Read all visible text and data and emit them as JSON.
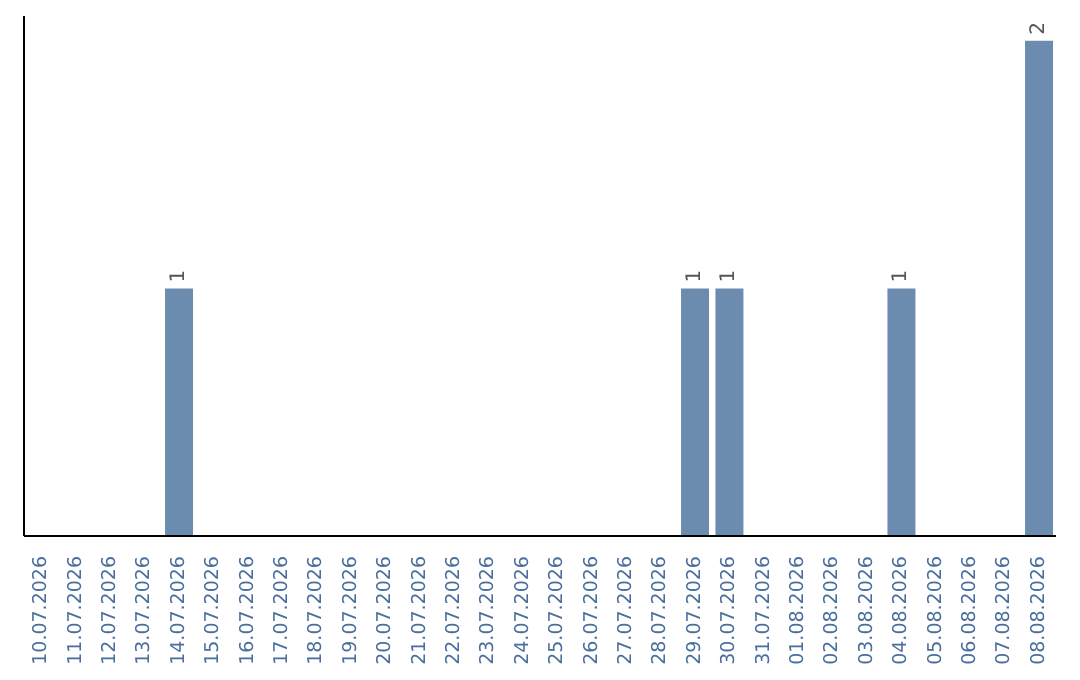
{
  "chart_data": {
    "type": "bar",
    "categories": [
      "10.07.2026",
      "11.07.2026",
      "12.07.2026",
      "13.07.2026",
      "14.07.2026",
      "15.07.2026",
      "16.07.2026",
      "17.07.2026",
      "18.07.2026",
      "19.07.2026",
      "20.07.2026",
      "21.07.2026",
      "22.07.2026",
      "23.07.2026",
      "24.07.2026",
      "25.07.2026",
      "26.07.2026",
      "27.07.2026",
      "28.07.2026",
      "29.07.2026",
      "30.07.2026",
      "31.07.2026",
      "01.08.2026",
      "02.08.2026",
      "03.08.2026",
      "04.08.2026",
      "05.08.2026",
      "06.08.2026",
      "07.08.2026",
      "08.08.2026"
    ],
    "values": [
      0,
      0,
      0,
      0,
      1,
      0,
      0,
      0,
      0,
      0,
      0,
      0,
      0,
      0,
      0,
      0,
      0,
      0,
      0,
      1,
      1,
      0,
      0,
      0,
      0,
      1,
      0,
      0,
      0,
      2
    ],
    "value_labels": [
      null,
      null,
      null,
      null,
      "1",
      null,
      null,
      null,
      null,
      null,
      null,
      null,
      null,
      null,
      null,
      null,
      null,
      null,
      null,
      "1",
      "1",
      null,
      null,
      null,
      null,
      "1",
      null,
      null,
      null,
      "2"
    ],
    "color": "#6b8cae"
  }
}
